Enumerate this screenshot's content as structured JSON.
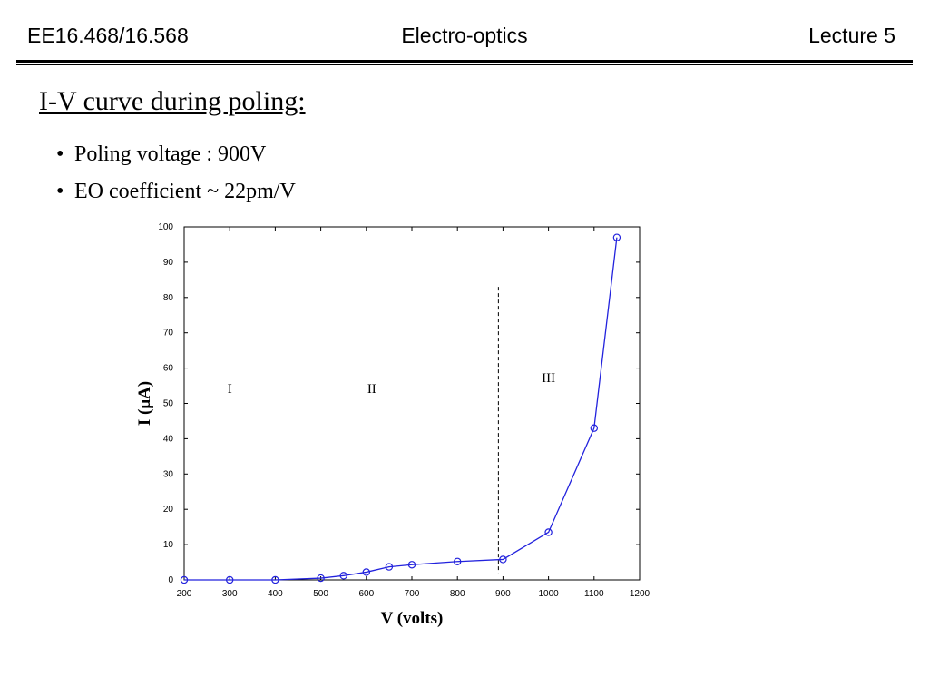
{
  "header": {
    "course": "EE16.468/16.568",
    "subject": "Electro-optics",
    "lecture": "Lecture 5"
  },
  "slide": {
    "title": "I-V curve during poling:",
    "bullets": [
      "Poling voltage : 900V",
      "EO coefficient ~ 22pm/V"
    ]
  },
  "chart_data": {
    "type": "line",
    "xlabel": "V (volts)",
    "ylabel": "I (μA)",
    "xlim": [
      200,
      1200
    ],
    "ylim": [
      0,
      100
    ],
    "xticks": [
      200,
      300,
      400,
      500,
      600,
      700,
      800,
      900,
      1000,
      1100,
      1200
    ],
    "yticks": [
      0,
      10,
      20,
      30,
      40,
      50,
      60,
      70,
      80,
      90,
      100
    ],
    "grid": false,
    "line_color": "#2222dd",
    "series": [
      {
        "x": [
          200,
          300,
          400,
          500,
          550,
          600,
          650,
          700,
          800,
          900,
          1000,
          1100,
          1150
        ],
        "y": [
          0,
          0,
          0,
          0.5,
          1.2,
          2.2,
          3.7,
          4.3,
          5.2,
          5.8,
          13.5,
          43,
          97
        ]
      }
    ],
    "divider_x": 890,
    "regions": [
      {
        "label": "I",
        "x": 300,
        "y": 53
      },
      {
        "label": "II",
        "x": 612,
        "y": 53
      },
      {
        "label": "III",
        "x": 1000,
        "y": 56
      }
    ]
  }
}
